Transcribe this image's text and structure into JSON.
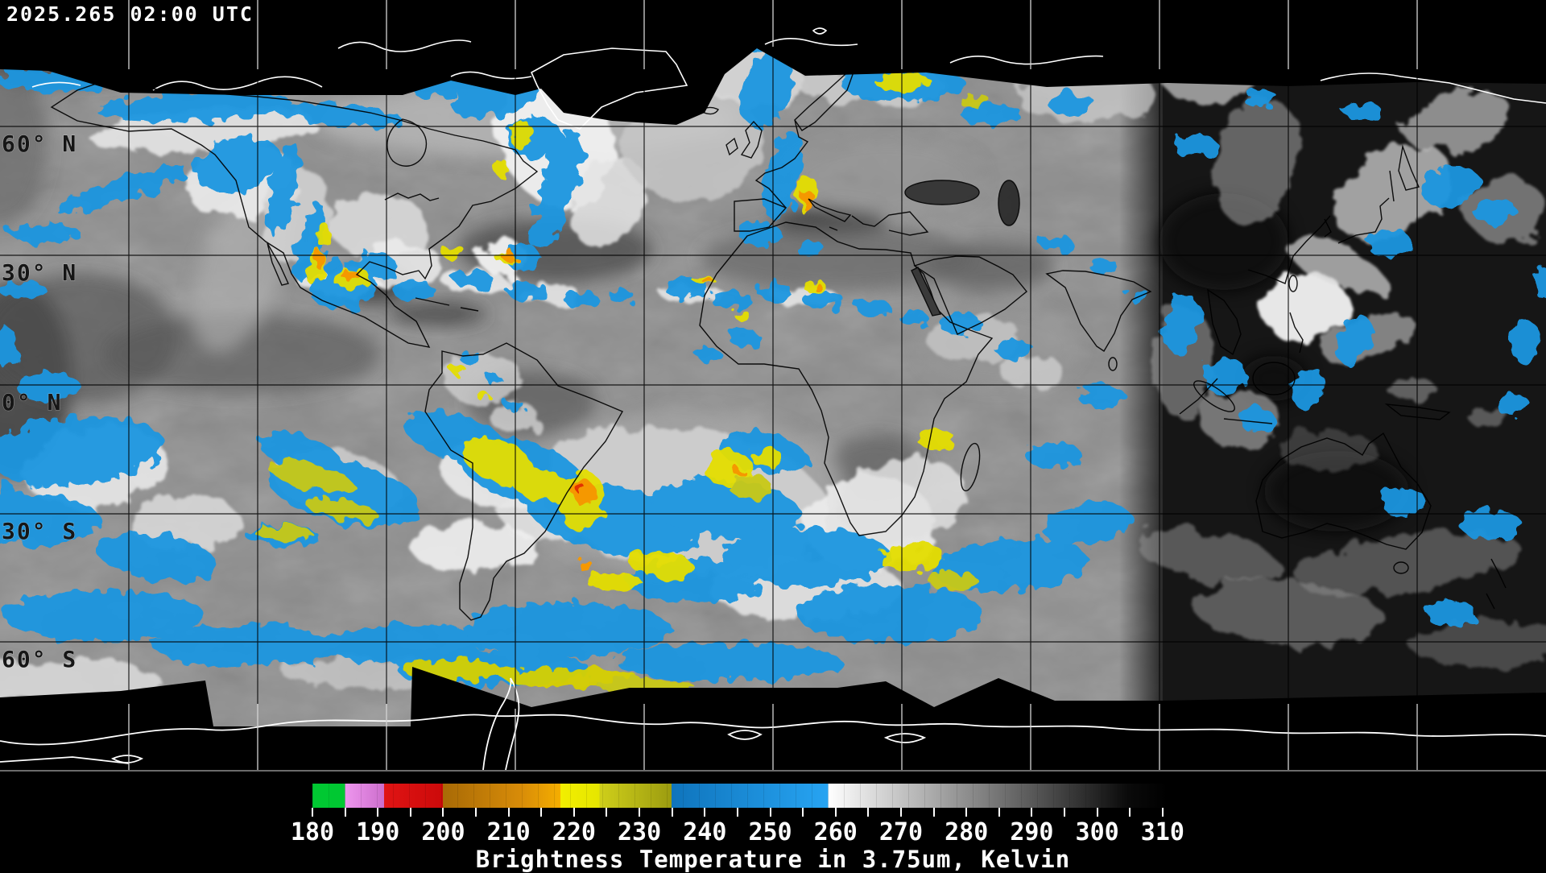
{
  "header": {
    "timestamp": "2025.265 02:00 UTC"
  },
  "map": {
    "lat_labels": [
      {
        "text": "60° N"
      },
      {
        "text": "30° N"
      },
      {
        "text": "0° N"
      },
      {
        "text": "30° S"
      },
      {
        "text": "60° S"
      }
    ]
  },
  "colorbar": {
    "unit": "Kelvin",
    "min": 180,
    "max": 311,
    "minor_tick_start": 180,
    "minor_tick_end": 310,
    "minor_tick_step": 5,
    "tick_labels": [
      "180",
      "190",
      "200",
      "210",
      "220",
      "230",
      "240",
      "250",
      "260",
      "270",
      "280",
      "290",
      "300",
      "310"
    ],
    "stops": [
      {
        "v": 180,
        "c": "#00c832"
      },
      {
        "v": 185,
        "c": "#00c832"
      },
      {
        "v": 185,
        "c": "#ee96ee"
      },
      {
        "v": 191,
        "c": "#cc6ecc"
      },
      {
        "v": 191,
        "c": "#e01414"
      },
      {
        "v": 200,
        "c": "#cc0a0a"
      },
      {
        "v": 200,
        "c": "#a86a06"
      },
      {
        "v": 212,
        "c": "#d88c08"
      },
      {
        "v": 218,
        "c": "#f5ae00"
      },
      {
        "v": 218,
        "c": "#f2ee00"
      },
      {
        "v": 224,
        "c": "#e6e600"
      },
      {
        "v": 224,
        "c": "#cfcf1a"
      },
      {
        "v": 235,
        "c": "#9c9c10"
      },
      {
        "v": 235,
        "c": "#0f74bc"
      },
      {
        "v": 259,
        "c": "#27a4f2"
      },
      {
        "v": 259,
        "c": "#ffffff"
      },
      {
        "v": 305,
        "c": "#0a0a0a"
      },
      {
        "v": 311,
        "c": "#000000"
      }
    ],
    "caption": "Brightness Temperature in 3.75um, Kelvin"
  },
  "palette": {
    "cold_cloud_blue": "#1b96e0",
    "convective_yellow": "#e4de06",
    "convective_orange": "#f59800",
    "convective_red": "#e23000",
    "grid_line": "#000000",
    "coastline_day": "#000000",
    "coastline_polar": "#ffffff"
  }
}
